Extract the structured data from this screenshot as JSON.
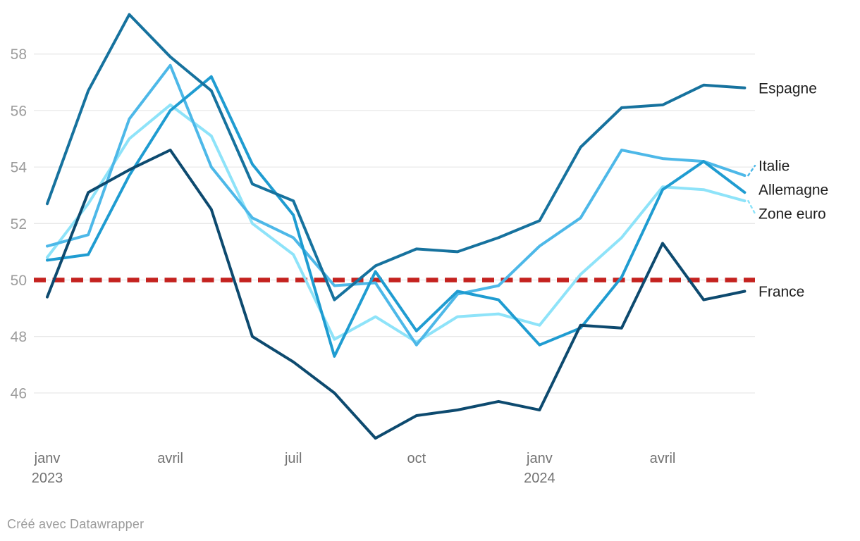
{
  "chart_data": {
    "type": "line",
    "title": "",
    "xlabel": "",
    "ylabel": "",
    "x": [
      "janv 2023",
      "févr 2023",
      "mars 2023",
      "avr 2023",
      "mai 2023",
      "juin 2023",
      "juil 2023",
      "août 2023",
      "sept 2023",
      "oct 2023",
      "nov 2023",
      "déc 2023",
      "janv 2024",
      "févr 2024",
      "mars 2024",
      "avr 2024",
      "mai 2024",
      "juin 2024"
    ],
    "x_ticks": [
      {
        "index": 0,
        "label": "janv",
        "sublabel": "2023"
      },
      {
        "index": 3,
        "label": "avril",
        "sublabel": ""
      },
      {
        "index": 6,
        "label": "juil",
        "sublabel": ""
      },
      {
        "index": 9,
        "label": "oct",
        "sublabel": ""
      },
      {
        "index": 12,
        "label": "janv",
        "sublabel": "2024"
      },
      {
        "index": 15,
        "label": "avril",
        "sublabel": ""
      }
    ],
    "y_ticks": [
      58,
      56,
      54,
      52,
      50,
      48,
      46
    ],
    "ylim": [
      44,
      60
    ],
    "grid": true,
    "legend_position": "direct-right-labels",
    "reference_line": {
      "value": 50,
      "color": "#c4221f",
      "style": "dashed"
    },
    "series": [
      {
        "name": "Espagne",
        "color": "#16729e",
        "values": [
          52.7,
          56.7,
          59.4,
          57.9,
          56.7,
          53.4,
          52.8,
          49.3,
          50.5,
          51.1,
          51.0,
          51.5,
          52.1,
          54.7,
          56.1,
          56.2,
          56.9,
          56.8
        ]
      },
      {
        "name": "Italie",
        "color": "#4db8e8",
        "values": [
          51.2,
          51.6,
          55.7,
          57.6,
          54.0,
          52.2,
          51.5,
          49.8,
          49.9,
          47.7,
          49.5,
          49.8,
          51.2,
          52.2,
          54.6,
          54.3,
          54.2,
          53.7
        ]
      },
      {
        "name": "Allemagne",
        "color": "#1f9cd1",
        "values": [
          50.7,
          50.9,
          53.7,
          56.0,
          57.2,
          54.1,
          52.3,
          47.3,
          50.3,
          48.2,
          49.6,
          49.3,
          47.7,
          48.3,
          50.1,
          53.2,
          54.2,
          53.1
        ]
      },
      {
        "name": "Zone euro",
        "color": "#8ee3f9",
        "values": [
          50.8,
          52.7,
          55.0,
          56.2,
          55.1,
          52.0,
          50.9,
          47.9,
          48.7,
          47.8,
          48.7,
          48.8,
          48.4,
          50.2,
          51.5,
          53.3,
          53.2,
          52.8
        ]
      },
      {
        "name": "France",
        "color": "#0d4a6f",
        "values": [
          49.4,
          53.1,
          53.9,
          54.6,
          52.5,
          48.0,
          47.1,
          46.0,
          44.4,
          45.2,
          45.4,
          45.7,
          45.4,
          48.4,
          48.3,
          51.3,
          49.3,
          49.6
        ]
      }
    ],
    "draw_order": [
      "Zone euro",
      "Italie",
      "Allemagne",
      "Espagne",
      "France"
    ],
    "colors": {
      "gridline": "#e8e8e8",
      "y_tick_label": "#9c9c9c",
      "x_tick_label": "#737373",
      "series_label": "#1f1f1f",
      "background": "#ffffff"
    }
  },
  "footer": {
    "credit": "Créé avec Datawrapper"
  }
}
